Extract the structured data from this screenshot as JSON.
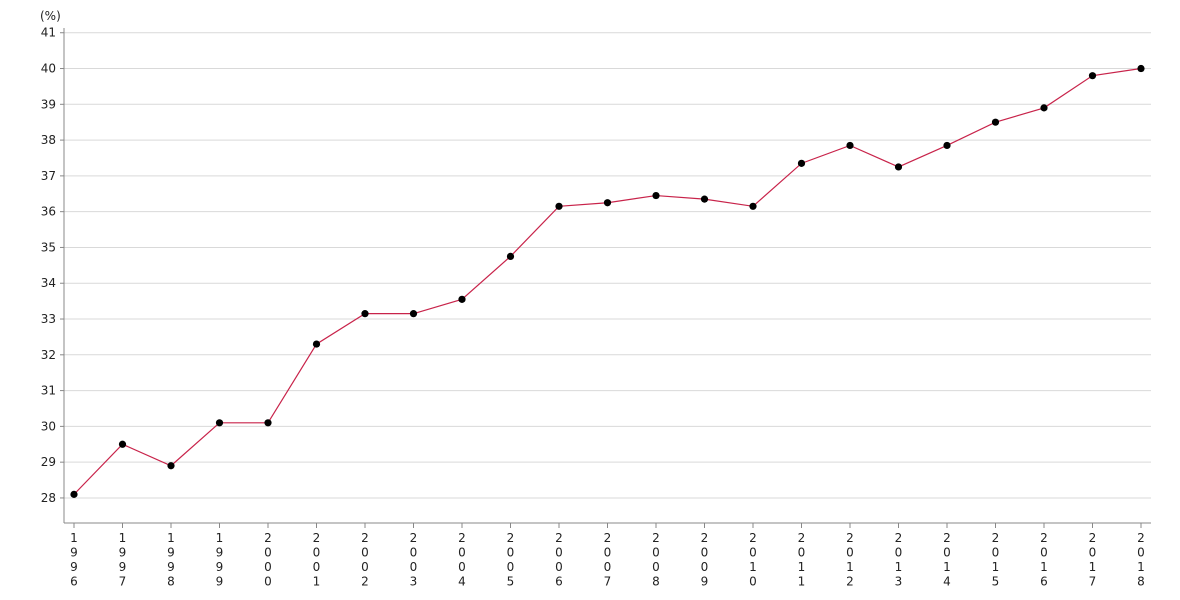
{
  "chart_data": {
    "type": "line",
    "title": "",
    "xlabel": "",
    "ylabel": "(%)",
    "ylim": [
      27.3,
      41.3
    ],
    "yticks": [
      28,
      29,
      30,
      31,
      32,
      33,
      34,
      35,
      36,
      37,
      38,
      39,
      40,
      41
    ],
    "grid": true,
    "legend": "none",
    "categories": [
      "1996",
      "1997",
      "1998",
      "1999",
      "2000",
      "2001",
      "2002",
      "2003",
      "2004",
      "2005",
      "2006",
      "2007",
      "2008",
      "2009",
      "2010",
      "2011",
      "2012",
      "2013",
      "2014",
      "2015",
      "2016",
      "2017",
      "2018"
    ],
    "series": [
      {
        "values": [
          28.1,
          29.5,
          28.9,
          30.1,
          30.1,
          32.3,
          33.15,
          33.15,
          33.55,
          34.75,
          36.15,
          36.25,
          36.45,
          36.35,
          36.15,
          37.35,
          37.85,
          37.25,
          37.85,
          38.5,
          38.9,
          39.8,
          40.0
        ],
        "color": "#c8234a",
        "marker_color": "#000000"
      }
    ]
  }
}
